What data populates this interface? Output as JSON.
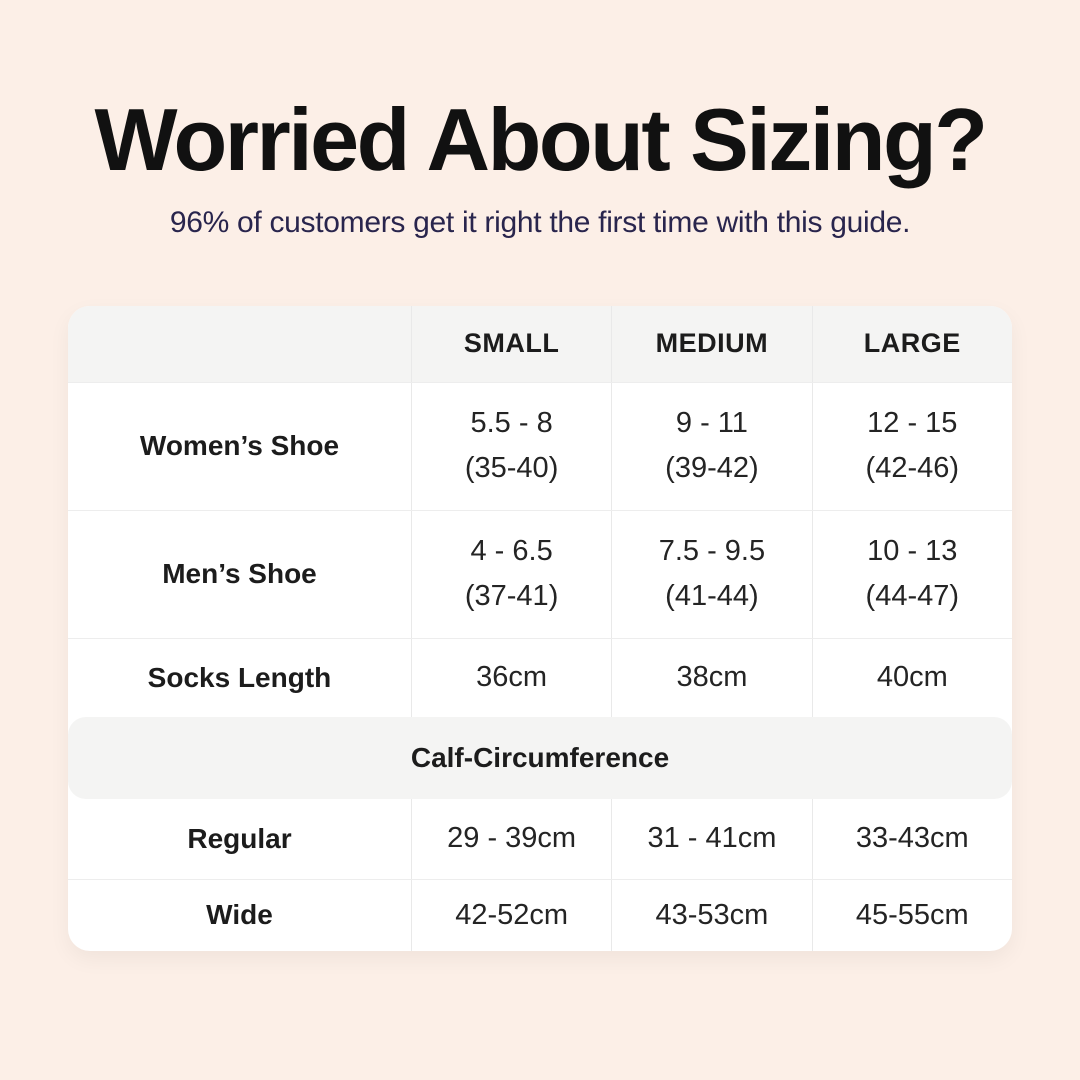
{
  "page": {
    "title": "Worried About Sizing?",
    "subtitle": "96% of customers get it right the first time with this guide."
  },
  "table": {
    "headers": [
      "SMALL",
      "MEDIUM",
      "LARGE"
    ],
    "rows": [
      {
        "label": "Women’s Shoe",
        "cells": [
          [
            "5.5 - 8",
            "(35-40)"
          ],
          [
            "9 - 11",
            "(39-42)"
          ],
          [
            "12 - 15",
            "(42-46)"
          ]
        ]
      },
      {
        "label": "Men’s Shoe",
        "cells": [
          [
            "4 - 6.5",
            "(37-41)"
          ],
          [
            "7.5 - 9.5",
            "(41-44)"
          ],
          [
            "10 - 13",
            "(44-47)"
          ]
        ]
      },
      {
        "label": "Socks Length",
        "cells": [
          [
            "36cm"
          ],
          [
            "38cm"
          ],
          [
            "40cm"
          ]
        ]
      }
    ],
    "section_header": "Calf-Circumference",
    "calf_rows": [
      {
        "label": "Regular",
        "cells": [
          "29 - 39cm",
          "31 - 41cm",
          "33-43cm"
        ]
      },
      {
        "label": "Wide",
        "cells": [
          "42-52cm",
          "43-53cm",
          "45-55cm"
        ]
      }
    ]
  },
  "colors": {
    "background": "#fcefe7",
    "card": "#ffffff",
    "band": "#f4f4f3",
    "title_text": "#111111",
    "subtitle_text": "#29254d",
    "table_text": "#242424",
    "divider": "#e9e9e9"
  }
}
